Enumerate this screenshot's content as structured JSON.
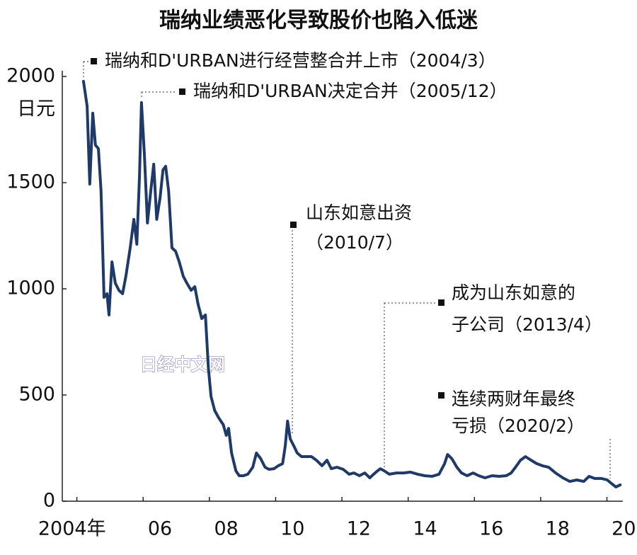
{
  "chart_data": {
    "type": "line",
    "title": "瑞纳业绩恶化导致股价也陷入低迷",
    "y_unit": "日元",
    "watermark": "日经中文网",
    "color": "#1f3a68",
    "xlim": [
      2003.56,
      2020.48
    ],
    "ylim": [
      0,
      2000
    ],
    "yticks": [
      0,
      500,
      1000,
      1500,
      2000
    ],
    "xticks": [
      {
        "value": 2004,
        "label": "2004年"
      },
      {
        "value": 2006,
        "label": "06"
      },
      {
        "value": 2008,
        "label": "08"
      },
      {
        "value": 2010,
        "label": "10"
      },
      {
        "value": 2012,
        "label": "12"
      },
      {
        "value": 2014,
        "label": "14"
      },
      {
        "value": 2016,
        "label": "16"
      },
      {
        "value": 2018,
        "label": "18"
      },
      {
        "value": 2020,
        "label": "20"
      }
    ],
    "annotations": [
      {
        "lines": [
          "瑞纳和D'URBAN进行经营整合并上市（2004/3）"
        ]
      },
      {
        "lines": [
          "瑞纳和D'URBAN决定合并（2005/12）"
        ]
      },
      {
        "lines": [
          "山东如意出资",
          "（2010/7）"
        ]
      },
      {
        "lines": [
          "成为山东如意的",
          "子公司（2013/4）"
        ]
      },
      {
        "lines": [
          "连续两财年最终",
          "亏损（2020/2）"
        ]
      }
    ],
    "x": [
      2004.2,
      2004.31,
      2004.39,
      2004.48,
      2004.56,
      2004.65,
      2004.73,
      2004.82,
      2004.91,
      2004.97,
      2005.06,
      2005.16,
      2005.27,
      2005.38,
      2005.48,
      2005.61,
      2005.72,
      2005.81,
      2005.89,
      2005.95,
      2006.04,
      2006.13,
      2006.23,
      2006.32,
      2006.41,
      2006.51,
      2006.6,
      2006.68,
      2006.77,
      2006.87,
      2006.98,
      2007.09,
      2007.21,
      2007.32,
      2007.45,
      2007.56,
      2007.66,
      2007.77,
      2007.88,
      2007.97,
      2008.05,
      2008.16,
      2008.28,
      2008.42,
      2008.51,
      2008.58,
      2008.67,
      2008.8,
      2008.9,
      2009.03,
      2009.16,
      2009.31,
      2009.42,
      2009.55,
      2009.68,
      2009.8,
      2009.95,
      2010.08,
      2010.21,
      2010.29,
      2010.36,
      2010.44,
      2010.55,
      2010.65,
      2010.78,
      2010.93,
      2011.08,
      2011.23,
      2011.4,
      2011.55,
      2011.68,
      2011.85,
      2012.04,
      2012.22,
      2012.36,
      2012.53,
      2012.69,
      2012.84,
      2013.0,
      2013.16,
      2013.28,
      2013.43,
      2013.65,
      2013.86,
      2014.07,
      2014.29,
      2014.5,
      2014.72,
      2014.93,
      2015.1,
      2015.19,
      2015.32,
      2015.47,
      2015.61,
      2015.78,
      2015.96,
      2016.13,
      2016.32,
      2016.53,
      2016.75,
      2016.96,
      2017.11,
      2017.24,
      2017.39,
      2017.54,
      2017.71,
      2017.88,
      2018.05,
      2018.24,
      2018.45,
      2018.67,
      2018.88,
      2019.09,
      2019.3,
      2019.46,
      2019.63,
      2019.84,
      2020.01,
      2020.14,
      2020.27,
      2020.4
    ],
    "values": [
      1977,
      1860,
      1493,
      1827,
      1677,
      1660,
      1460,
      960,
      977,
      877,
      1127,
      1027,
      993,
      977,
      1060,
      1193,
      1327,
      1210,
      1527,
      1877,
      1627,
      1310,
      1460,
      1587,
      1327,
      1427,
      1560,
      1577,
      1460,
      1193,
      1177,
      1127,
      1060,
      1027,
      993,
      1010,
      927,
      860,
      877,
      627,
      493,
      427,
      393,
      360,
      310,
      343,
      227,
      143,
      120,
      120,
      127,
      160,
      227,
      200,
      160,
      150,
      153,
      167,
      177,
      260,
      377,
      293,
      260,
      227,
      210,
      210,
      210,
      193,
      167,
      193,
      153,
      160,
      150,
      127,
      133,
      120,
      133,
      110,
      133,
      153,
      143,
      127,
      133,
      133,
      137,
      127,
      120,
      117,
      127,
      177,
      220,
      200,
      160,
      133,
      120,
      133,
      120,
      110,
      120,
      117,
      120,
      133,
      160,
      193,
      210,
      193,
      177,
      167,
      160,
      133,
      110,
      93,
      100,
      93,
      117,
      107,
      107,
      100,
      83,
      67,
      77
    ]
  }
}
